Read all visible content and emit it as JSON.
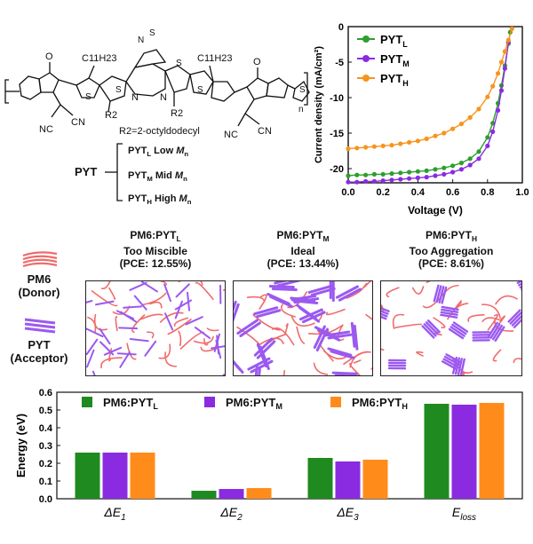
{
  "structure": {
    "c11_left": "C11H23",
    "c11_right": "C11H23",
    "r2_left": "R2",
    "r2_right": "R2",
    "r2_def": "R2=2-octyldodecyl",
    "n_left": "N",
    "n_right": "N",
    "nc_left": "NC",
    "cn_left": "CN",
    "nc_right": "NC",
    "cn_right": "CN",
    "bt_n": "N",
    "bt_s": "S",
    "s_labels": [
      "S",
      "S",
      "S",
      "S",
      "S"
    ],
    "o_labels": [
      "O",
      "O"
    ],
    "n_sub": "n",
    "pyt_label": "PYT",
    "variants": [
      {
        "name": "PYT",
        "sub": "L",
        "desc": "Low",
        "mw": "M",
        "mw_sub": "n"
      },
      {
        "name": "PYT",
        "sub": "M",
        "desc": "Mid",
        "mw": "M",
        "mw_sub": "n"
      },
      {
        "name": "PYT",
        "sub": "H",
        "desc": "High",
        "mw": "M",
        "mw_sub": "n"
      }
    ]
  },
  "jv_chart": {
    "chart_data": {
      "type": "line",
      "xlabel": "Voltage (V)",
      "ylabel": "Current density (mA/cm²)",
      "xlim": [
        0.0,
        1.0
      ],
      "ylim": [
        -22,
        0
      ],
      "xticks": [
        "0.0",
        "0.2",
        "0.4",
        "0.6",
        "0.8",
        "1.0"
      ],
      "yticks": [
        "0",
        "-5",
        "-10",
        "-15",
        "-20"
      ],
      "legend_position": "top-left",
      "series": [
        {
          "name": "PYT",
          "sub": "L",
          "color": "#2e9e2e",
          "x": [
            0,
            0.05,
            0.1,
            0.15,
            0.2,
            0.25,
            0.3,
            0.35,
            0.4,
            0.45,
            0.5,
            0.55,
            0.6,
            0.65,
            0.7,
            0.75,
            0.8,
            0.83,
            0.86,
            0.88,
            0.9,
            0.92,
            0.93
          ],
          "y": [
            -21.0,
            -20.9,
            -20.9,
            -20.8,
            -20.8,
            -20.7,
            -20.6,
            -20.5,
            -20.4,
            -20.3,
            -20.1,
            -19.9,
            -19.6,
            -19.2,
            -18.6,
            -17.6,
            -15.6,
            -13.6,
            -10.8,
            -8.3,
            -5.5,
            -2.4,
            -0.8
          ]
        },
        {
          "name": "PYT",
          "sub": "M",
          "color": "#8a2be2",
          "x": [
            0,
            0.05,
            0.1,
            0.15,
            0.2,
            0.25,
            0.3,
            0.35,
            0.4,
            0.45,
            0.5,
            0.55,
            0.6,
            0.65,
            0.7,
            0.75,
            0.8,
            0.83,
            0.86,
            0.88,
            0.9,
            0.92
          ],
          "y": [
            -21.9,
            -21.9,
            -21.8,
            -21.8,
            -21.7,
            -21.6,
            -21.5,
            -21.4,
            -21.3,
            -21.2,
            -21.0,
            -20.8,
            -20.5,
            -20.1,
            -19.5,
            -18.6,
            -16.8,
            -14.8,
            -11.8,
            -9.0,
            -5.9,
            -2.2
          ]
        },
        {
          "name": "PYT",
          "sub": "H",
          "color": "#f7941d",
          "x": [
            0,
            0.05,
            0.1,
            0.15,
            0.2,
            0.25,
            0.3,
            0.35,
            0.4,
            0.45,
            0.5,
            0.55,
            0.6,
            0.65,
            0.7,
            0.75,
            0.8,
            0.83,
            0.86,
            0.88,
            0.9,
            0.92,
            0.94
          ],
          "y": [
            -17.2,
            -17.1,
            -17.0,
            -16.9,
            -16.8,
            -16.7,
            -16.5,
            -16.3,
            -16.1,
            -15.8,
            -15.4,
            -15.0,
            -14.4,
            -13.7,
            -12.8,
            -11.6,
            -9.9,
            -8.4,
            -6.6,
            -5.0,
            -3.5,
            -1.9,
            -0.3
          ]
        }
      ]
    }
  },
  "morphology": {
    "legend_donor": {
      "name": "PM6",
      "role": "(Donor)"
    },
    "legend_acceptor": {
      "name": "PYT",
      "role": "(Acceptor)"
    },
    "panels": [
      {
        "blend": "PM6:PYT",
        "sub": "L",
        "state": "Too Miscible",
        "pce": "(PCE: 12.55%)"
      },
      {
        "blend": "PM6:PYT",
        "sub": "M",
        "state": "Ideal",
        "pce": "(PCE: 13.44%)"
      },
      {
        "blend": "PM6:PYT",
        "sub": "H",
        "state": "Too Aggregation",
        "pce": "(PCE: 8.61%)"
      }
    ],
    "colors": {
      "donor": "#f06b6b",
      "acceptor": "#9b59f0"
    }
  },
  "energy_chart": {
    "chart_data": {
      "type": "bar",
      "ylabel": "Energy (eV)",
      "ylim": [
        0.0,
        0.6
      ],
      "yticks": [
        "0.0",
        "0.1",
        "0.2",
        "0.3",
        "0.4",
        "0.5",
        "0.6"
      ],
      "categories": [
        "ΔE1",
        "ΔE2",
        "ΔE3",
        "Eloss"
      ],
      "category_parts": [
        {
          "main": "ΔE",
          "sub": "1"
        },
        {
          "main": "ΔE",
          "sub": "2"
        },
        {
          "main": "ΔE",
          "sub": "3"
        },
        {
          "main": "E",
          "sub": "loss"
        }
      ],
      "series": [
        {
          "name": "PM6:PYT",
          "sub": "L",
          "color": "#1f8a1f",
          "values": [
            0.26,
            0.045,
            0.23,
            0.535
          ]
        },
        {
          "name": "PM6:PYT",
          "sub": "M",
          "color": "#8a2be2",
          "values": [
            0.26,
            0.055,
            0.21,
            0.53
          ]
        },
        {
          "name": "PM6:PYT",
          "sub": "H",
          "color": "#ff8c1a",
          "values": [
            0.26,
            0.06,
            0.22,
            0.54
          ]
        }
      ],
      "legend_position": "top"
    }
  }
}
